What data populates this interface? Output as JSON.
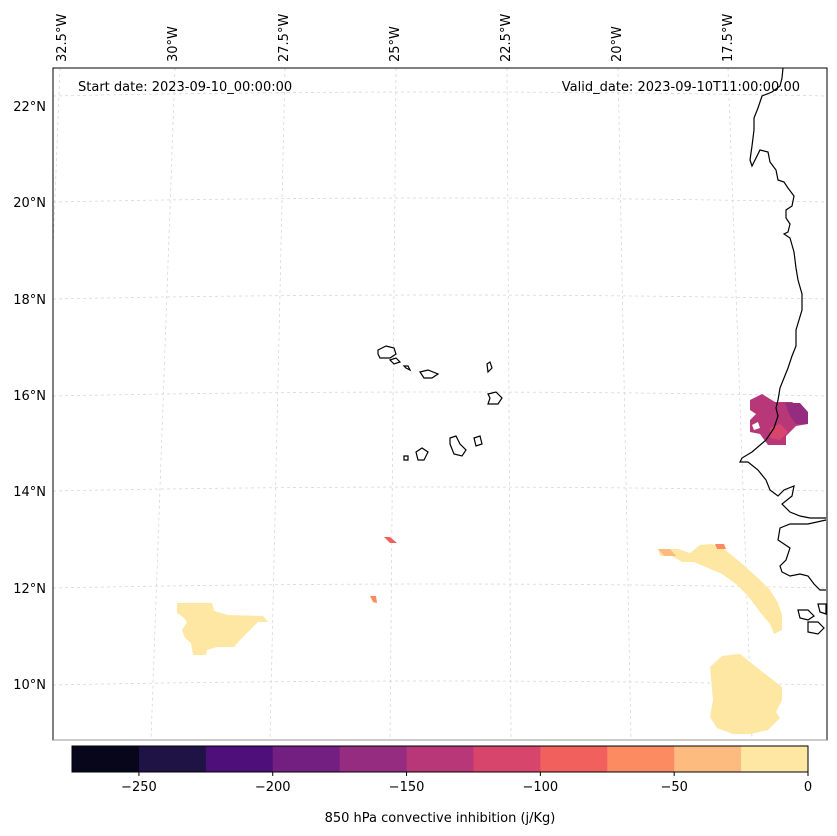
{
  "header": {
    "start_date": "Start date: 2023-09-10_00:00:00",
    "valid_date": "Valid_date: 2023-09-10T11:00:00.00"
  },
  "map": {
    "lon_labels": [
      "32.5°W",
      "30°W",
      "27.5°W",
      "25°W",
      "22.5°W",
      "20°W",
      "17.5°W"
    ],
    "lat_labels": [
      "22°N",
      "20°N",
      "18°N",
      "16°N",
      "14°N",
      "12°N",
      "10°N"
    ],
    "coastline_color": "#000000",
    "grid_color": "#cccccc"
  },
  "colorbar": {
    "label": "850 hPa convective inhibition (j/Kg)",
    "ticks": [
      "−250",
      "−200",
      "−150",
      "−100",
      "−50",
      "0"
    ],
    "tick_values": [
      -250,
      -200,
      -150,
      -100,
      -50,
      0
    ],
    "range": [
      -275,
      0
    ],
    "colors": [
      "#07061b",
      "#1f1346",
      "#4e0f7b",
      "#721f81",
      "#952c80",
      "#b73779",
      "#d8456c",
      "#f1605d",
      "#fd8b61",
      "#febb80",
      "#fde7a3"
    ]
  }
}
